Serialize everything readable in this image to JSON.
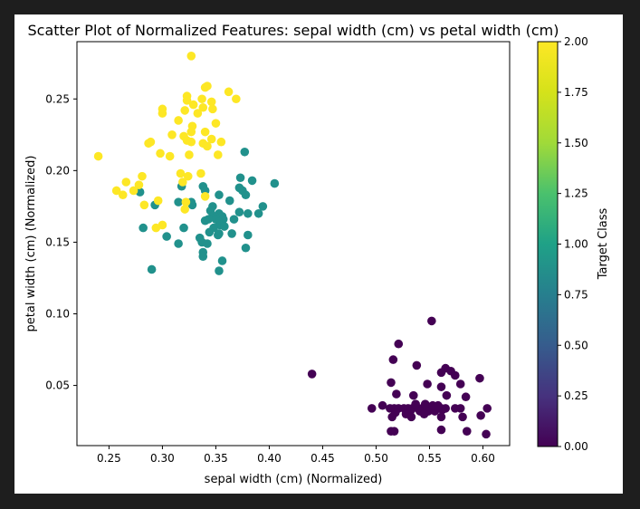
{
  "chart_data": {
    "type": "scatter",
    "title": "Scatter Plot of Normalized Features: sepal width (cm) vs petal width (cm)",
    "xlabel": "sepal width (cm) (Normalized)",
    "ylabel": "petal width (cm) (Normalized)",
    "xlim": [
      0.22,
      0.625
    ],
    "ylim": [
      0.008,
      0.29
    ],
    "xticks": [
      0.25,
      0.3,
      0.35,
      0.4,
      0.45,
      0.5,
      0.55,
      0.6
    ],
    "xtick_labels": [
      "0.25",
      "0.30",
      "0.35",
      "0.40",
      "0.45",
      "0.50",
      "0.55",
      "0.60"
    ],
    "yticks": [
      0.05,
      0.1,
      0.15,
      0.2,
      0.25
    ],
    "ytick_labels": [
      "0.05",
      "0.10",
      "0.15",
      "0.20",
      "0.25"
    ],
    "grid": false,
    "colormap": "viridis",
    "colors": {
      "class_0": "#440154",
      "class_1": "#21918c",
      "class_2": "#fde725"
    },
    "colorbar": {
      "label": "Target Class",
      "range": [
        0,
        2
      ],
      "ticks": [
        0,
        0.25,
        0.5,
        0.75,
        1.0,
        1.25,
        1.5,
        1.75,
        2.0
      ],
      "tick_labels": [
        "0.00",
        "0.25",
        "0.50",
        "0.75",
        "1.00",
        "1.25",
        "1.50",
        "1.75",
        "2.00"
      ]
    },
    "points": [
      {
        "x": 0.552,
        "y": 0.095,
        "c": 0
      },
      {
        "x": 0.521,
        "y": 0.079,
        "c": 0
      },
      {
        "x": 0.516,
        "y": 0.068,
        "c": 0
      },
      {
        "x": 0.538,
        "y": 0.064,
        "c": 0
      },
      {
        "x": 0.565,
        "y": 0.062,
        "c": 0
      },
      {
        "x": 0.57,
        "y": 0.06,
        "c": 0
      },
      {
        "x": 0.561,
        "y": 0.059,
        "c": 0
      },
      {
        "x": 0.44,
        "y": 0.058,
        "c": 0
      },
      {
        "x": 0.574,
        "y": 0.057,
        "c": 0
      },
      {
        "x": 0.597,
        "y": 0.055,
        "c": 0
      },
      {
        "x": 0.514,
        "y": 0.052,
        "c": 0
      },
      {
        "x": 0.548,
        "y": 0.051,
        "c": 0
      },
      {
        "x": 0.579,
        "y": 0.051,
        "c": 0
      },
      {
        "x": 0.561,
        "y": 0.049,
        "c": 0
      },
      {
        "x": 0.519,
        "y": 0.044,
        "c": 0
      },
      {
        "x": 0.535,
        "y": 0.043,
        "c": 0
      },
      {
        "x": 0.566,
        "y": 0.043,
        "c": 0
      },
      {
        "x": 0.584,
        "y": 0.042,
        "c": 0
      },
      {
        "x": 0.506,
        "y": 0.036,
        "c": 0
      },
      {
        "x": 0.496,
        "y": 0.034,
        "c": 0
      },
      {
        "x": 0.513,
        "y": 0.034,
        "c": 0
      },
      {
        "x": 0.517,
        "y": 0.034,
        "c": 0
      },
      {
        "x": 0.521,
        "y": 0.034,
        "c": 0
      },
      {
        "x": 0.526,
        "y": 0.034,
        "c": 0
      },
      {
        "x": 0.53,
        "y": 0.034,
        "c": 0
      },
      {
        "x": 0.534,
        "y": 0.034,
        "c": 0
      },
      {
        "x": 0.539,
        "y": 0.034,
        "c": 0
      },
      {
        "x": 0.543,
        "y": 0.034,
        "c": 0
      },
      {
        "x": 0.547,
        "y": 0.034,
        "c": 0
      },
      {
        "x": 0.552,
        "y": 0.034,
        "c": 0
      },
      {
        "x": 0.556,
        "y": 0.034,
        "c": 0
      },
      {
        "x": 0.561,
        "y": 0.034,
        "c": 0
      },
      {
        "x": 0.565,
        "y": 0.034,
        "c": 0
      },
      {
        "x": 0.574,
        "y": 0.034,
        "c": 0
      },
      {
        "x": 0.579,
        "y": 0.034,
        "c": 0
      },
      {
        "x": 0.604,
        "y": 0.034,
        "c": 0
      },
      {
        "x": 0.532,
        "y": 0.032,
        "c": 0
      },
      {
        "x": 0.541,
        "y": 0.032,
        "c": 0
      },
      {
        "x": 0.549,
        "y": 0.032,
        "c": 0
      },
      {
        "x": 0.555,
        "y": 0.032,
        "c": 0
      },
      {
        "x": 0.562,
        "y": 0.033,
        "c": 0
      },
      {
        "x": 0.537,
        "y": 0.037,
        "c": 0
      },
      {
        "x": 0.546,
        "y": 0.037,
        "c": 0
      },
      {
        "x": 0.553,
        "y": 0.036,
        "c": 0
      },
      {
        "x": 0.558,
        "y": 0.036,
        "c": 0
      },
      {
        "x": 0.518,
        "y": 0.031,
        "c": 0
      },
      {
        "x": 0.528,
        "y": 0.03,
        "c": 0
      },
      {
        "x": 0.545,
        "y": 0.03,
        "c": 0
      },
      {
        "x": 0.598,
        "y": 0.029,
        "c": 0
      },
      {
        "x": 0.515,
        "y": 0.028,
        "c": 0
      },
      {
        "x": 0.533,
        "y": 0.028,
        "c": 0
      },
      {
        "x": 0.561,
        "y": 0.028,
        "c": 0
      },
      {
        "x": 0.581,
        "y": 0.028,
        "c": 0
      },
      {
        "x": 0.517,
        "y": 0.018,
        "c": 0
      },
      {
        "x": 0.514,
        "y": 0.018,
        "c": 0
      },
      {
        "x": 0.561,
        "y": 0.019,
        "c": 0
      },
      {
        "x": 0.585,
        "y": 0.018,
        "c": 0
      },
      {
        "x": 0.603,
        "y": 0.016,
        "c": 0
      },
      {
        "x": 0.377,
        "y": 0.213,
        "c": 1
      },
      {
        "x": 0.373,
        "y": 0.195,
        "c": 1
      },
      {
        "x": 0.384,
        "y": 0.193,
        "c": 1
      },
      {
        "x": 0.405,
        "y": 0.191,
        "c": 1
      },
      {
        "x": 0.318,
        "y": 0.189,
        "c": 1
      },
      {
        "x": 0.338,
        "y": 0.189,
        "c": 1
      },
      {
        "x": 0.372,
        "y": 0.188,
        "c": 1
      },
      {
        "x": 0.375,
        "y": 0.186,
        "c": 1
      },
      {
        "x": 0.34,
        "y": 0.186,
        "c": 1
      },
      {
        "x": 0.279,
        "y": 0.185,
        "c": 1
      },
      {
        "x": 0.353,
        "y": 0.183,
        "c": 1
      },
      {
        "x": 0.378,
        "y": 0.183,
        "c": 1
      },
      {
        "x": 0.363,
        "y": 0.179,
        "c": 1
      },
      {
        "x": 0.315,
        "y": 0.178,
        "c": 1
      },
      {
        "x": 0.293,
        "y": 0.176,
        "c": 1
      },
      {
        "x": 0.328,
        "y": 0.176,
        "c": 1
      },
      {
        "x": 0.347,
        "y": 0.175,
        "c": 1
      },
      {
        "x": 0.394,
        "y": 0.175,
        "c": 1
      },
      {
        "x": 0.372,
        "y": 0.171,
        "c": 1
      },
      {
        "x": 0.38,
        "y": 0.17,
        "c": 1
      },
      {
        "x": 0.39,
        "y": 0.17,
        "c": 1
      },
      {
        "x": 0.353,
        "y": 0.17,
        "c": 1
      },
      {
        "x": 0.349,
        "y": 0.168,
        "c": 1
      },
      {
        "x": 0.347,
        "y": 0.168,
        "c": 1
      },
      {
        "x": 0.356,
        "y": 0.168,
        "c": 1
      },
      {
        "x": 0.35,
        "y": 0.166,
        "c": 1
      },
      {
        "x": 0.357,
        "y": 0.166,
        "c": 1
      },
      {
        "x": 0.367,
        "y": 0.166,
        "c": 1
      },
      {
        "x": 0.343,
        "y": 0.166,
        "c": 1
      },
      {
        "x": 0.353,
        "y": 0.164,
        "c": 1
      },
      {
        "x": 0.34,
        "y": 0.165,
        "c": 1
      },
      {
        "x": 0.354,
        "y": 0.162,
        "c": 1
      },
      {
        "x": 0.358,
        "y": 0.161,
        "c": 1
      },
      {
        "x": 0.348,
        "y": 0.16,
        "c": 1
      },
      {
        "x": 0.32,
        "y": 0.16,
        "c": 1
      },
      {
        "x": 0.282,
        "y": 0.16,
        "c": 1
      },
      {
        "x": 0.344,
        "y": 0.157,
        "c": 1
      },
      {
        "x": 0.353,
        "y": 0.156,
        "c": 1
      },
      {
        "x": 0.365,
        "y": 0.156,
        "c": 1
      },
      {
        "x": 0.38,
        "y": 0.155,
        "c": 1
      },
      {
        "x": 0.352,
        "y": 0.155,
        "c": 1
      },
      {
        "x": 0.304,
        "y": 0.154,
        "c": 1
      },
      {
        "x": 0.335,
        "y": 0.153,
        "c": 1
      },
      {
        "x": 0.337,
        "y": 0.15,
        "c": 1
      },
      {
        "x": 0.315,
        "y": 0.149,
        "c": 1
      },
      {
        "x": 0.342,
        "y": 0.149,
        "c": 1
      },
      {
        "x": 0.378,
        "y": 0.146,
        "c": 1
      },
      {
        "x": 0.338,
        "y": 0.143,
        "c": 1
      },
      {
        "x": 0.338,
        "y": 0.14,
        "c": 1
      },
      {
        "x": 0.356,
        "y": 0.137,
        "c": 1
      },
      {
        "x": 0.29,
        "y": 0.131,
        "c": 1
      },
      {
        "x": 0.353,
        "y": 0.13,
        "c": 1
      },
      {
        "x": 0.327,
        "y": 0.178,
        "c": 1
      },
      {
        "x": 0.345,
        "y": 0.172,
        "c": 1
      },
      {
        "x": 0.327,
        "y": 0.28,
        "c": 2
      },
      {
        "x": 0.34,
        "y": 0.258,
        "c": 2
      },
      {
        "x": 0.342,
        "y": 0.259,
        "c": 2
      },
      {
        "x": 0.362,
        "y": 0.255,
        "c": 2
      },
      {
        "x": 0.323,
        "y": 0.252,
        "c": 2
      },
      {
        "x": 0.337,
        "y": 0.25,
        "c": 2
      },
      {
        "x": 0.323,
        "y": 0.249,
        "c": 2
      },
      {
        "x": 0.369,
        "y": 0.25,
        "c": 2
      },
      {
        "x": 0.346,
        "y": 0.248,
        "c": 2
      },
      {
        "x": 0.329,
        "y": 0.246,
        "c": 2
      },
      {
        "x": 0.338,
        "y": 0.244,
        "c": 2
      },
      {
        "x": 0.3,
        "y": 0.243,
        "c": 2
      },
      {
        "x": 0.347,
        "y": 0.243,
        "c": 2
      },
      {
        "x": 0.321,
        "y": 0.242,
        "c": 2
      },
      {
        "x": 0.3,
        "y": 0.24,
        "c": 2
      },
      {
        "x": 0.333,
        "y": 0.24,
        "c": 2
      },
      {
        "x": 0.315,
        "y": 0.235,
        "c": 2
      },
      {
        "x": 0.35,
        "y": 0.233,
        "c": 2
      },
      {
        "x": 0.328,
        "y": 0.231,
        "c": 2
      },
      {
        "x": 0.327,
        "y": 0.227,
        "c": 2
      },
      {
        "x": 0.34,
        "y": 0.227,
        "c": 2
      },
      {
        "x": 0.309,
        "y": 0.225,
        "c": 2
      },
      {
        "x": 0.32,
        "y": 0.224,
        "c": 2
      },
      {
        "x": 0.346,
        "y": 0.222,
        "c": 2
      },
      {
        "x": 0.323,
        "y": 0.221,
        "c": 2
      },
      {
        "x": 0.327,
        "y": 0.22,
        "c": 2
      },
      {
        "x": 0.287,
        "y": 0.219,
        "c": 2
      },
      {
        "x": 0.289,
        "y": 0.22,
        "c": 2
      },
      {
        "x": 0.355,
        "y": 0.22,
        "c": 2
      },
      {
        "x": 0.338,
        "y": 0.219,
        "c": 2
      },
      {
        "x": 0.342,
        "y": 0.217,
        "c": 2
      },
      {
        "x": 0.298,
        "y": 0.212,
        "c": 2
      },
      {
        "x": 0.325,
        "y": 0.211,
        "c": 2
      },
      {
        "x": 0.352,
        "y": 0.211,
        "c": 2
      },
      {
        "x": 0.307,
        "y": 0.21,
        "c": 2
      },
      {
        "x": 0.24,
        "y": 0.21,
        "c": 2
      },
      {
        "x": 0.317,
        "y": 0.198,
        "c": 2
      },
      {
        "x": 0.336,
        "y": 0.198,
        "c": 2
      },
      {
        "x": 0.324,
        "y": 0.196,
        "c": 2
      },
      {
        "x": 0.281,
        "y": 0.196,
        "c": 2
      },
      {
        "x": 0.319,
        "y": 0.192,
        "c": 2
      },
      {
        "x": 0.266,
        "y": 0.192,
        "c": 2
      },
      {
        "x": 0.278,
        "y": 0.19,
        "c": 2
      },
      {
        "x": 0.257,
        "y": 0.186,
        "c": 2
      },
      {
        "x": 0.273,
        "y": 0.186,
        "c": 2
      },
      {
        "x": 0.263,
        "y": 0.183,
        "c": 2
      },
      {
        "x": 0.34,
        "y": 0.182,
        "c": 2
      },
      {
        "x": 0.296,
        "y": 0.179,
        "c": 2
      },
      {
        "x": 0.322,
        "y": 0.178,
        "c": 2
      },
      {
        "x": 0.283,
        "y": 0.176,
        "c": 2
      },
      {
        "x": 0.321,
        "y": 0.173,
        "c": 2
      },
      {
        "x": 0.3,
        "y": 0.162,
        "c": 2
      },
      {
        "x": 0.294,
        "y": 0.16,
        "c": 2
      }
    ]
  }
}
